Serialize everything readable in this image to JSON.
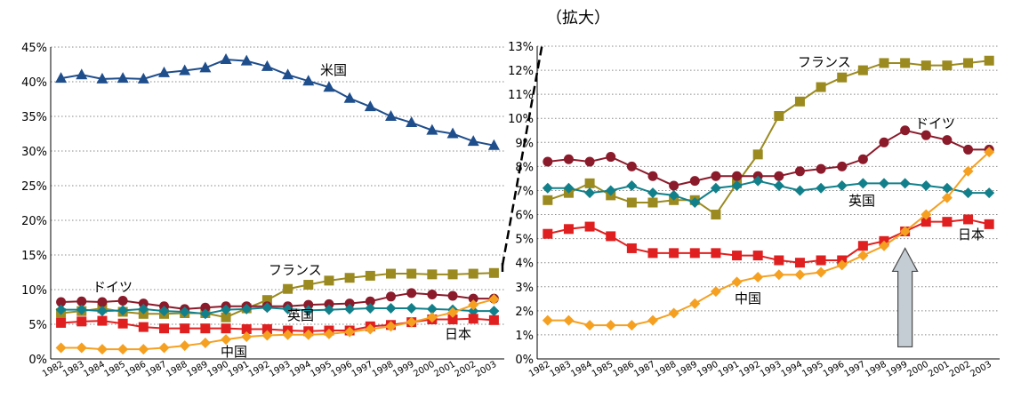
{
  "title": "（拡大）",
  "chart_data": [
    {
      "type": "line",
      "x": [
        "1982",
        "1983",
        "1984",
        "1985",
        "1986",
        "1987",
        "1988",
        "1989",
        "1990",
        "1991",
        "1992",
        "1993",
        "1994",
        "1995",
        "1996",
        "1997",
        "1998",
        "1999",
        "2000",
        "2001",
        "2002",
        "2003"
      ],
      "ylim": [
        0,
        45
      ],
      "yticks": [
        "0%",
        "5%",
        "10%",
        "15%",
        "20%",
        "25%",
        "30%",
        "35%",
        "40%",
        "45%"
      ],
      "grid": "horizontal dotted",
      "series": [
        {
          "name": "米国",
          "color": "#1f4e8c",
          "marker": "triangle",
          "values": [
            40.5,
            41.0,
            40.4,
            40.5,
            40.4,
            41.3,
            41.6,
            42.0,
            43.2,
            43.0,
            42.2,
            41.0,
            40.1,
            39.2,
            37.6,
            36.4,
            35.0,
            34.1,
            33.0,
            32.5,
            31.4,
            30.8
          ]
        },
        {
          "name": "フランス",
          "color": "#9b8a1f",
          "marker": "square",
          "values": [
            6.6,
            6.9,
            7.3,
            6.8,
            6.5,
            6.5,
            6.6,
            6.6,
            6.0,
            7.3,
            8.5,
            10.1,
            10.7,
            11.3,
            11.7,
            12.0,
            12.3,
            12.3,
            12.2,
            12.2,
            12.3,
            12.4
          ]
        },
        {
          "name": "ドイツ",
          "color": "#8b1a2a",
          "marker": "circle",
          "values": [
            8.2,
            8.3,
            8.2,
            8.4,
            8.0,
            7.6,
            7.2,
            7.4,
            7.6,
            7.6,
            7.6,
            7.6,
            7.8,
            7.9,
            8.0,
            8.3,
            9.0,
            9.5,
            9.3,
            9.1,
            8.7,
            8.7
          ]
        },
        {
          "name": "英国",
          "color": "#12808a",
          "marker": "diamond",
          "values": [
            7.1,
            7.1,
            6.9,
            7.0,
            7.2,
            6.9,
            6.8,
            6.5,
            7.1,
            7.2,
            7.4,
            7.2,
            7.0,
            7.1,
            7.2,
            7.3,
            7.3,
            7.3,
            7.2,
            7.1,
            6.9,
            6.9
          ]
        },
        {
          "name": "日本",
          "color": "#e02020",
          "marker": "square",
          "values": [
            5.2,
            5.4,
            5.5,
            5.1,
            4.6,
            4.4,
            4.4,
            4.4,
            4.4,
            4.3,
            4.3,
            4.1,
            4.0,
            4.1,
            4.1,
            4.7,
            4.9,
            5.3,
            5.7,
            5.7,
            5.8,
            5.6
          ]
        },
        {
          "name": "中国",
          "color": "#f5a020",
          "marker": "diamond",
          "values": [
            1.6,
            1.6,
            1.4,
            1.4,
            1.4,
            1.6,
            1.9,
            2.3,
            2.8,
            3.2,
            3.4,
            3.5,
            3.5,
            3.6,
            3.9,
            4.3,
            4.7,
            5.3,
            6.0,
            6.7,
            7.8,
            8.6
          ]
        }
      ]
    },
    {
      "type": "line",
      "x": [
        "1982",
        "1983",
        "1984",
        "1985",
        "1986",
        "1987",
        "1988",
        "1989",
        "1990",
        "1991",
        "1992",
        "1993",
        "1994",
        "1995",
        "1996",
        "1997",
        "1998",
        "1999",
        "2000",
        "2001",
        "2002",
        "2003"
      ],
      "ylim": [
        0,
        13
      ],
      "yticks": [
        "0%",
        "1%",
        "2%",
        "3%",
        "4%",
        "5%",
        "6%",
        "7%",
        "8%",
        "9%",
        "10%",
        "11%",
        "12%",
        "13%"
      ],
      "grid": "horizontal dotted",
      "series": [
        {
          "name": "フランス",
          "color": "#9b8a1f",
          "marker": "square",
          "values": [
            6.6,
            6.9,
            7.3,
            6.8,
            6.5,
            6.5,
            6.6,
            6.6,
            6.0,
            7.3,
            8.5,
            10.1,
            10.7,
            11.3,
            11.7,
            12.0,
            12.3,
            12.3,
            12.2,
            12.2,
            12.3,
            12.4
          ]
        },
        {
          "name": "ドイツ",
          "color": "#8b1a2a",
          "marker": "circle",
          "values": [
            8.2,
            8.3,
            8.2,
            8.4,
            8.0,
            7.6,
            7.2,
            7.4,
            7.6,
            7.6,
            7.6,
            7.6,
            7.8,
            7.9,
            8.0,
            8.3,
            9.0,
            9.5,
            9.3,
            9.1,
            8.7,
            8.7
          ]
        },
        {
          "name": "英国",
          "color": "#12808a",
          "marker": "diamond",
          "values": [
            7.1,
            7.1,
            6.9,
            7.0,
            7.2,
            6.9,
            6.8,
            6.5,
            7.1,
            7.2,
            7.4,
            7.2,
            7.0,
            7.1,
            7.2,
            7.3,
            7.3,
            7.3,
            7.2,
            7.1,
            6.9,
            6.9
          ]
        },
        {
          "name": "日本",
          "color": "#e02020",
          "marker": "square",
          "values": [
            5.2,
            5.4,
            5.5,
            5.1,
            4.6,
            4.4,
            4.4,
            4.4,
            4.4,
            4.3,
            4.3,
            4.1,
            4.0,
            4.1,
            4.1,
            4.7,
            4.9,
            5.3,
            5.7,
            5.7,
            5.8,
            5.6
          ]
        },
        {
          "name": "中国",
          "color": "#f5a020",
          "marker": "diamond",
          "values": [
            1.6,
            1.6,
            1.4,
            1.4,
            1.4,
            1.6,
            1.9,
            2.3,
            2.8,
            3.2,
            3.4,
            3.5,
            3.5,
            3.6,
            3.9,
            4.3,
            4.7,
            5.3,
            6.0,
            6.7,
            7.8,
            8.6
          ]
        }
      ],
      "arrow": {
        "x": "1999",
        "from_y": 0.5,
        "to_y": 4.6,
        "color": "#c4cdd3"
      }
    }
  ]
}
